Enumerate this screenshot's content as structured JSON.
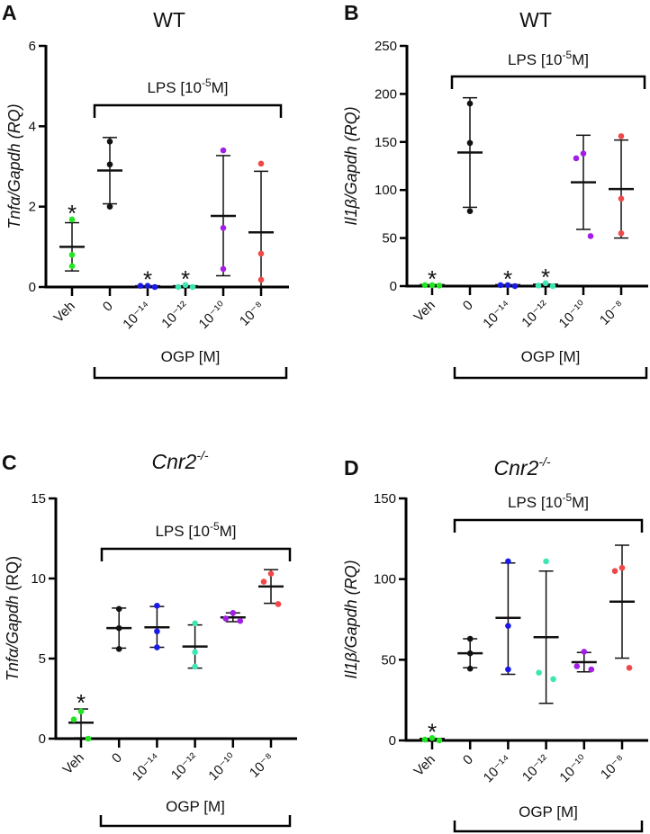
{
  "chart_data": [
    {
      "type": "scatter",
      "panel_letter": "A",
      "title": {
        "text": "WT",
        "sup": "",
        "italic": false
      },
      "ylabel": {
        "gene": "Tnfα/Gapdh",
        "unit": "(RQ)",
        "unit_italic": true
      },
      "ylim": [
        0,
        6
      ],
      "yticks": [
        0,
        2,
        4,
        6
      ],
      "categories": [
        "Veh",
        "0",
        "10⁻¹⁴",
        "10⁻¹²",
        "10⁻¹⁰",
        "10⁻⁸"
      ],
      "colors": [
        "#22e622",
        "#111111",
        "#1a1ae6",
        "#3ee6b4",
        "#a21ee6",
        "#f04848"
      ],
      "points": [
        [
          1.68,
          0.8,
          0.52
        ],
        [
          3.62,
          3.05,
          2.0
        ],
        [
          0.03,
          0.0,
          0.03
        ],
        [
          0.05,
          0.0,
          0.0
        ],
        [
          3.4,
          1.47,
          0.45
        ],
        [
          3.07,
          0.83,
          0.18
        ]
      ],
      "mean": [
        1.0,
        2.9,
        0.02,
        0.02,
        1.77,
        1.36
      ],
      "sd_low": [
        0.4,
        2.07,
        0.02,
        0.02,
        0.28,
        0
      ],
      "sd_high": [
        1.6,
        3.72,
        0.02,
        0.02,
        3.27,
        2.88
      ],
      "significant": [
        true,
        false,
        true,
        true,
        false,
        false
      ],
      "star": "*",
      "lps_label": {
        "pre": "LPS [10",
        "sup": "-5",
        "post": "M]"
      },
      "ogp_label": "OGP [M]"
    },
    {
      "type": "scatter",
      "panel_letter": "B",
      "title": {
        "text": "WT",
        "sup": "",
        "italic": false
      },
      "ylabel": {
        "gene": "Il1β/Gapdh",
        "unit": "(RQ)",
        "unit_italic": true
      },
      "ylim": [
        0,
        250
      ],
      "yticks": [
        0,
        50,
        100,
        150,
        200,
        250
      ],
      "categories": [
        "Veh",
        "0",
        "10⁻¹⁴",
        "10⁻¹²",
        "10⁻¹⁰",
        "10⁻⁸"
      ],
      "colors": [
        "#22e622",
        "#111111",
        "#1a1ae6",
        "#3ee6b4",
        "#a21ee6",
        "#f04848"
      ],
      "points": [
        [
          1,
          0.5,
          1
        ],
        [
          190,
          149,
          78
        ],
        [
          1,
          0,
          1
        ],
        [
          3,
          0,
          0.5
        ],
        [
          138,
          133,
          52
        ],
        [
          156,
          91,
          55
        ]
      ],
      "mean": [
        1,
        139,
        1,
        1.5,
        108,
        101
      ],
      "sd_low": [
        1,
        82,
        1,
        1.5,
        59,
        50
      ],
      "sd_high": [
        1,
        196,
        1,
        1.5,
        157,
        152
      ],
      "significant": [
        true,
        false,
        true,
        true,
        false,
        false
      ],
      "star": "*",
      "lps_label": {
        "pre": "LPS [10",
        "sup": "-5",
        "post": "M]"
      },
      "ogp_label": "OGP [M]"
    },
    {
      "type": "scatter",
      "panel_letter": "C",
      "title": {
        "text": "Cnr2",
        "sup": "-/-",
        "italic": true
      },
      "ylabel": {
        "gene": "Tnfα/Gapdh",
        "unit": "(RQ)",
        "unit_italic": false
      },
      "ylim": [
        0,
        15
      ],
      "yticks": [
        0,
        5,
        10,
        15
      ],
      "categories": [
        "Veh",
        "0",
        "10⁻¹⁴",
        "10⁻¹²",
        "10⁻¹⁰",
        "10⁻⁸"
      ],
      "colors": [
        "#22e622",
        "#111111",
        "#1a1ae6",
        "#3ee6b4",
        "#a21ee6",
        "#f04848"
      ],
      "points": [
        [
          1.7,
          1.2,
          0.0
        ],
        [
          8.1,
          6.9,
          5.6
        ],
        [
          8.3,
          6.7,
          5.7
        ],
        [
          7.2,
          5.4,
          4.5
        ],
        [
          7.85,
          7.35,
          7.5
        ],
        [
          10.3,
          9.8,
          8.4
        ]
      ],
      "mean": [
        1.0,
        6.9,
        6.95,
        5.75,
        7.57,
        9.5
      ],
      "sd_low": [
        0.05,
        5.65,
        5.7,
        4.4,
        7.3,
        8.45
      ],
      "sd_high": [
        1.85,
        8.15,
        8.25,
        7.1,
        7.85,
        10.55
      ],
      "significant": [
        true,
        false,
        false,
        false,
        false,
        false
      ],
      "star": "*",
      "lps_label": {
        "pre": "LPS [10",
        "sup": "-5",
        "post": "M]"
      },
      "ogp_label": "OGP [M]"
    },
    {
      "type": "scatter",
      "panel_letter": "D",
      "title": {
        "text": "Cnr2",
        "sup": "-/-",
        "italic": true
      },
      "ylabel": {
        "gene": "Il1β/Gapdh",
        "unit": "(RQ)",
        "unit_italic": true
      },
      "ylim": [
        0,
        150
      ],
      "yticks": [
        0,
        50,
        100,
        150
      ],
      "categories": [
        "Veh",
        "0",
        "10⁻¹⁴",
        "10⁻¹²",
        "10⁻¹⁰",
        "10⁻⁸"
      ],
      "colors": [
        "#22e622",
        "#111111",
        "#1a1ae6",
        "#3ee6b4",
        "#a21ee6",
        "#f04848"
      ],
      "points": [
        [
          1.5,
          0,
          0.5
        ],
        [
          63,
          54,
          44.5
        ],
        [
          111,
          71,
          44
        ],
        [
          111,
          38,
          42
        ],
        [
          55,
          44,
          46
        ],
        [
          107,
          105,
          45
        ]
      ],
      "mean": [
        1,
        54,
        76,
        64,
        48.5,
        86
      ],
      "sd_low": [
        1,
        45,
        41,
        23,
        42.5,
        51
      ],
      "sd_high": [
        1,
        63,
        110,
        105,
        54.5,
        121
      ],
      "significant": [
        true,
        false,
        false,
        false,
        false,
        false
      ],
      "star": "*",
      "lps_label": {
        "pre": "LPS [10",
        "sup": "-5",
        "post": "M]"
      },
      "ogp_label": "OGP [M]"
    }
  ]
}
